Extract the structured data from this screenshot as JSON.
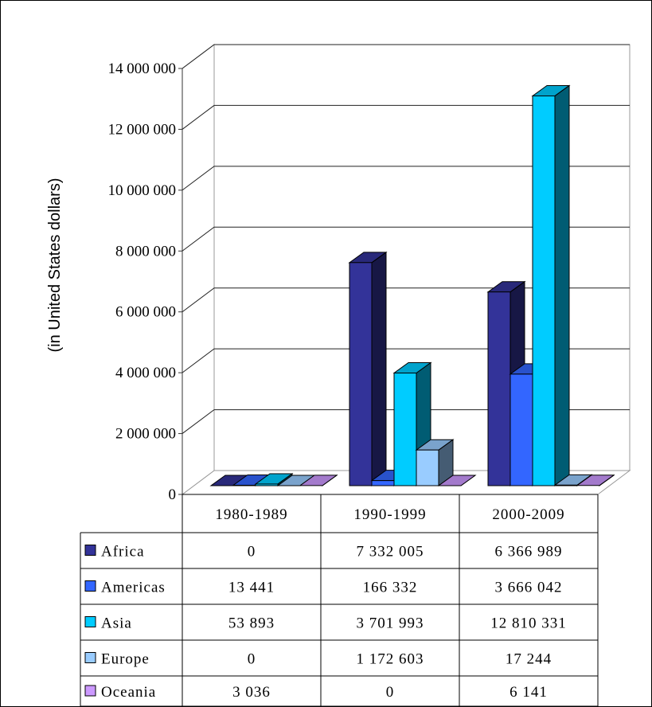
{
  "chart_data": {
    "type": "bar",
    "subtype": "3d-clustered-column-with-data-table",
    "categories": [
      "1980-1989",
      "1990-1999",
      "2000-2009"
    ],
    "series": [
      {
        "name": "Africa",
        "color": "#333399",
        "values": [
          0,
          7332005,
          6366989
        ],
        "labels": [
          "0",
          "7 332 005",
          "6 366 989"
        ]
      },
      {
        "name": "Americas",
        "color": "#3366ff",
        "values": [
          13441,
          166332,
          3666042
        ],
        "labels": [
          "13 441",
          "166 332",
          "3 666 042"
        ]
      },
      {
        "name": "Asia",
        "color": "#00ccff",
        "values": [
          53893,
          3701993,
          12810331
        ],
        "labels": [
          "53 893",
          "3 701 993",
          "12 810 331"
        ]
      },
      {
        "name": "Europe",
        "color": "#99ccff",
        "values": [
          0,
          1172603,
          17244
        ],
        "labels": [
          "0",
          "1 172 603",
          "17 244"
        ]
      },
      {
        "name": "Oceania",
        "color": "#cc99ff",
        "values": [
          3036,
          0,
          6141
        ],
        "labels": [
          "3 036",
          "0",
          "6 141"
        ]
      }
    ],
    "ylabel": "(in United States dollars)",
    "ylim": [
      0,
      14000000
    ],
    "yticks": [
      0,
      2000000,
      4000000,
      6000000,
      8000000,
      10000000,
      12000000,
      14000000
    ],
    "ytick_labels": [
      "0",
      "2 000 000",
      "4 000 000",
      "6 000 000",
      "8 000 000",
      "10 000 000",
      "12 000 000",
      "14 000 000"
    ],
    "grid": true,
    "legend": "data-table"
  }
}
